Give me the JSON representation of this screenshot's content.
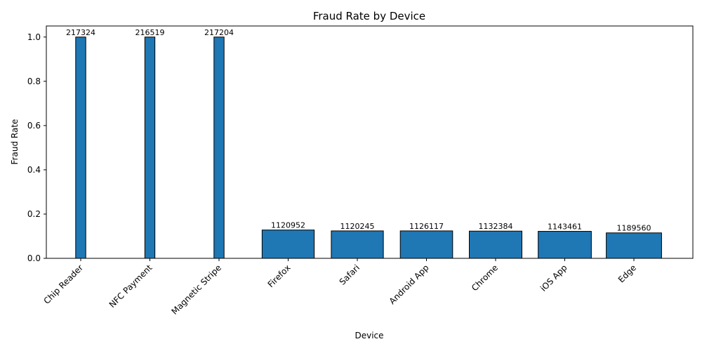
{
  "chart_data": {
    "type": "bar",
    "title": "Fraud Rate by Device",
    "xlabel": "Device",
    "ylabel": "Fraud Rate",
    "ylim": [
      0,
      1.05
    ],
    "yticks": [
      "0.0",
      "0.2",
      "0.4",
      "0.6",
      "0.8",
      "1.0"
    ],
    "ytick_values": [
      0,
      0.2,
      0.4,
      0.6,
      0.8,
      1.0
    ],
    "grid": false,
    "bar_color": "#1f77b4",
    "edge_color": "#000000",
    "categories": [
      "Chip Reader",
      "NFC Payment",
      "Magnetic Stripe",
      "Firefox",
      "Safari",
      "Android App",
      "Chrome",
      "iOS App",
      "Edge"
    ],
    "values": [
      1.0,
      1.0,
      1.0,
      0.128,
      0.124,
      0.124,
      0.123,
      0.122,
      0.115
    ],
    "bar_labels": [
      "217324",
      "216519",
      "217204",
      "1120952",
      "1120245",
      "1126117",
      "1132384",
      "1143461",
      "1189560"
    ],
    "bar_width_share": [
      217324,
      216519,
      217204,
      1120952,
      1120245,
      1126117,
      1132384,
      1143461,
      1189560
    ]
  }
}
